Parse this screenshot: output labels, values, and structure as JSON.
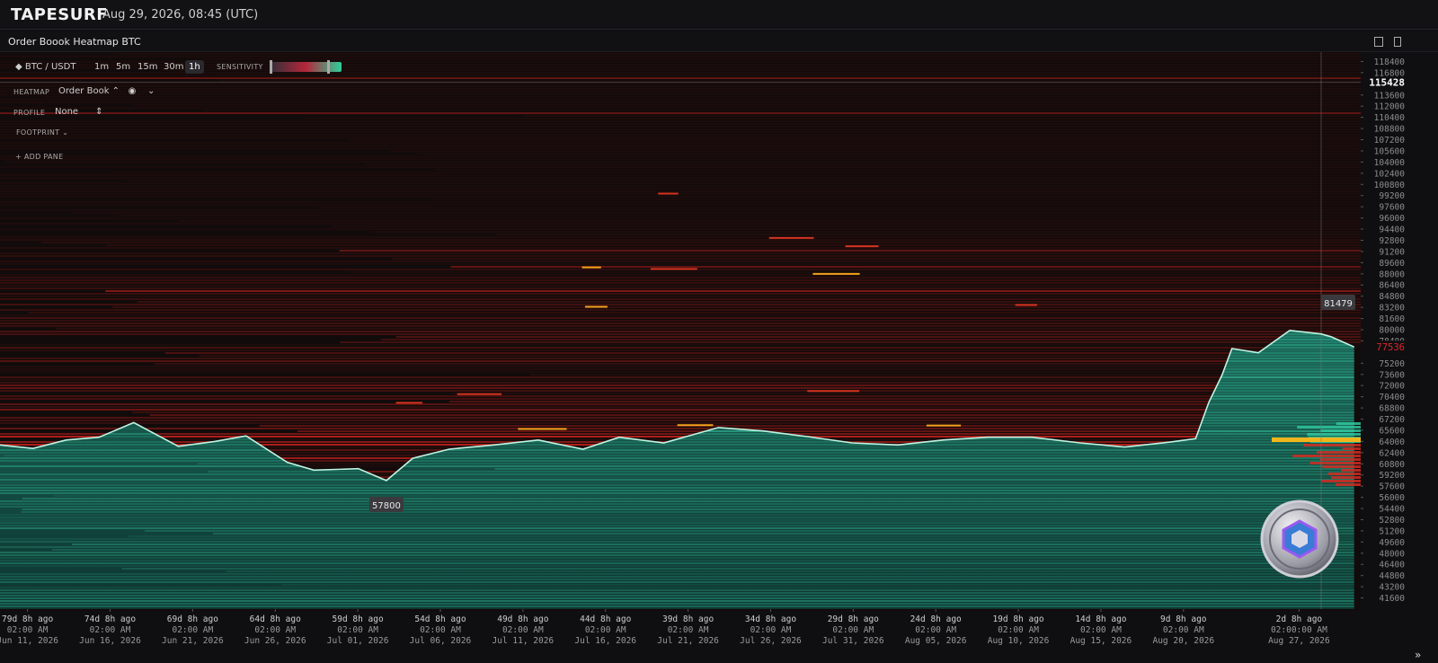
{
  "header": {
    "brand": "TAPESURF",
    "timestamp": "Aug 29, 2026, 08:45 (UTC)"
  },
  "pane_title": "Order Boook Heatmap BTC",
  "toolbar": {
    "symbol": "BTC / USDT",
    "timeframes": [
      "1m",
      "5m",
      "15m",
      "30m",
      "1h"
    ],
    "active_timeframe": "1h",
    "sensitivity": "SENSITIVITY"
  },
  "side_panel": {
    "heatmap_label": "HEATMAP",
    "heatmap_value": "Order Book",
    "profile_label": "PROFILE",
    "profile_value": "None",
    "footprint": "FOOTPRINT",
    "add_pane": "ADD PANE"
  },
  "footer": {
    "more": "»"
  },
  "chart_data": {
    "type": "heatmap",
    "xlim": [
      81,
      -1.4
    ],
    "ylim": [
      40000,
      120000
    ],
    "x": [
      81,
      79,
      77,
      75,
      72.9,
      70.2,
      68,
      66.1,
      63.6,
      62,
      59.3,
      57.6,
      56,
      53.8,
      51.1,
      48.4,
      45.7,
      43.5,
      40.8,
      37.5,
      34.8,
      32.1,
      29.4,
      26.6,
      23.9,
      21.2,
      18.5,
      15.6,
      12.9,
      10.2,
      8.6,
      7.8,
      7,
      6.4,
      4.8,
      2.9,
      1,
      0.4,
      -1
    ],
    "values": [
      63500,
      63000,
      64200,
      64600,
      66700,
      63300,
      64000,
      64800,
      61000,
      59900,
      60100,
      58400,
      61600,
      62900,
      63500,
      64200,
      62900,
      64600,
      63800,
      66000,
      65500,
      64700,
      63800,
      63500,
      64200,
      64600,
      64600,
      63800,
      63200,
      63900,
      64400,
      69600,
      73500,
      77300,
      76700,
      79900,
      79400,
      79000,
      77536
    ],
    "color": "#bff5e4",
    "yticks": [
      118400,
      116800,
      113600,
      112000,
      110400,
      108800,
      107200,
      105600,
      104000,
      102400,
      100800,
      99200,
      97600,
      96000,
      94400,
      92800,
      91200,
      89600,
      88000,
      86400,
      84800,
      83200,
      81600,
      80000,
      78400,
      75200,
      73600,
      72000,
      70400,
      68800,
      67200,
      65600,
      64000,
      62400,
      60800,
      59200,
      57600,
      56000,
      54400,
      52800,
      51200,
      49600,
      48000,
      46400,
      44800,
      43200,
      41600
    ],
    "xticks": [
      {
        "value": 79.333,
        "label": "79d 8h ago",
        "time": "02:00 AM",
        "date": "Jun 11, 2026"
      },
      {
        "value": 74.333,
        "label": "74d 8h ago",
        "time": "02:00 AM",
        "date": "Jun 16, 2026"
      },
      {
        "value": 69.333,
        "label": "69d 8h ago",
        "time": "02:00 AM",
        "date": "Jun 21, 2026"
      },
      {
        "value": 64.333,
        "label": "64d 8h ago",
        "time": "02:00 AM",
        "date": "Jun 26, 2026"
      },
      {
        "value": 59.333,
        "label": "59d 8h ago",
        "time": "02:00 AM",
        "date": "Jul 01, 2026"
      },
      {
        "value": 54.333,
        "label": "54d 8h ago",
        "time": "02:00 AM",
        "date": "Jul 06, 2026"
      },
      {
        "value": 49.333,
        "label": "49d 8h ago",
        "time": "02:00 AM",
        "date": "Jul 11, 2026"
      },
      {
        "value": 44.333,
        "label": "44d 8h ago",
        "time": "02:00 AM",
        "date": "Jul 16, 2026"
      },
      {
        "value": 39.333,
        "label": "39d 8h ago",
        "time": "02:00 AM",
        "date": "Jul 21, 2026"
      },
      {
        "value": 34.333,
        "label": "34d 8h ago",
        "time": "02:00 AM",
        "date": "Jul 26, 2026"
      },
      {
        "value": 29.333,
        "label": "29d 8h ago",
        "time": "02:00 AM",
        "date": "Jul 31, 2026"
      },
      {
        "value": 24.333,
        "label": "24d 8h ago",
        "time": "02:00 AM",
        "date": "Aug 05, 2026"
      },
      {
        "value": 19.333,
        "label": "19d 8h ago",
        "time": "02:00 AM",
        "date": "Aug 10, 2026"
      },
      {
        "value": 14.333,
        "label": "14d 8h ago",
        "time": "02:00 AM",
        "date": "Aug 15, 2026"
      },
      {
        "value": 9.333,
        "label": "9d 8h ago",
        "time": "02:00 AM",
        "date": "Aug 20, 2026"
      },
      {
        "value": 2.333,
        "label": "2d 8h ago",
        "time": "02:00:00 AM",
        "date": "Aug 27, 2026"
      }
    ],
    "cursor_price": 115428,
    "last_price": 77536,
    "high": 81479,
    "low": 57800
  }
}
